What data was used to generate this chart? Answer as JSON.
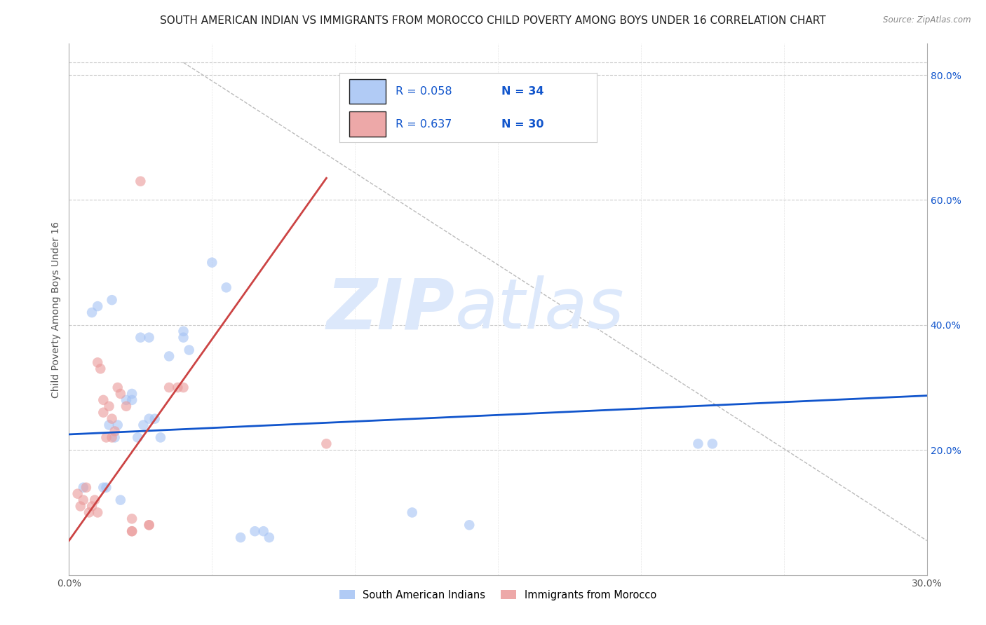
{
  "title": "SOUTH AMERICAN INDIAN VS IMMIGRANTS FROM MOROCCO CHILD POVERTY AMONG BOYS UNDER 16 CORRELATION CHART",
  "source": "Source: ZipAtlas.com",
  "ylabel": "Child Poverty Among Boys Under 16",
  "right_yticks": [
    "80.0%",
    "60.0%",
    "40.0%",
    "20.0%"
  ],
  "right_ytick_vals": [
    0.8,
    0.6,
    0.4,
    0.2
  ],
  "xlim": [
    0.0,
    0.3
  ],
  "ylim": [
    0.0,
    0.85
  ],
  "legend_blue_R": "0.058",
  "legend_blue_N": "34",
  "legend_pink_R": "0.637",
  "legend_pink_N": "30",
  "legend_label_blue": "South American Indians",
  "legend_label_pink": "Immigrants from Morocco",
  "blue_scatter_x": [
    0.005,
    0.008,
    0.01,
    0.012,
    0.013,
    0.014,
    0.015,
    0.016,
    0.017,
    0.018,
    0.02,
    0.022,
    0.022,
    0.024,
    0.025,
    0.026,
    0.028,
    0.028,
    0.03,
    0.032,
    0.035,
    0.04,
    0.04,
    0.042,
    0.05,
    0.055,
    0.06,
    0.065,
    0.068,
    0.07,
    0.12,
    0.14,
    0.22,
    0.225
  ],
  "blue_scatter_y": [
    0.14,
    0.42,
    0.43,
    0.14,
    0.14,
    0.24,
    0.44,
    0.22,
    0.24,
    0.12,
    0.28,
    0.28,
    0.29,
    0.22,
    0.38,
    0.24,
    0.25,
    0.38,
    0.25,
    0.22,
    0.35,
    0.39,
    0.38,
    0.36,
    0.5,
    0.46,
    0.06,
    0.07,
    0.07,
    0.06,
    0.1,
    0.08,
    0.21,
    0.21
  ],
  "pink_scatter_x": [
    0.003,
    0.004,
    0.005,
    0.006,
    0.007,
    0.008,
    0.009,
    0.01,
    0.01,
    0.011,
    0.012,
    0.012,
    0.013,
    0.014,
    0.015,
    0.015,
    0.016,
    0.017,
    0.018,
    0.02,
    0.022,
    0.022,
    0.022,
    0.025,
    0.028,
    0.028,
    0.035,
    0.038,
    0.04,
    0.09
  ],
  "pink_scatter_y": [
    0.13,
    0.11,
    0.12,
    0.14,
    0.1,
    0.11,
    0.12,
    0.34,
    0.1,
    0.33,
    0.26,
    0.28,
    0.22,
    0.27,
    0.25,
    0.22,
    0.23,
    0.3,
    0.29,
    0.27,
    0.07,
    0.07,
    0.09,
    0.63,
    0.08,
    0.08,
    0.3,
    0.3,
    0.3,
    0.21
  ],
  "blue_line_x": [
    0.0,
    0.3
  ],
  "blue_line_y": [
    0.225,
    0.287
  ],
  "pink_line_x": [
    0.0,
    0.09
  ],
  "pink_line_y": [
    0.055,
    0.635
  ],
  "diag_line_x": [
    0.04,
    0.3
  ],
  "diag_line_y": [
    0.82,
    0.055
  ],
  "blue_color": "#a4c2f4",
  "pink_color": "#ea9999",
  "blue_line_color": "#1155cc",
  "pink_line_color": "#cc4444",
  "legend_text_color": "#1155cc",
  "watermark_zip_color": "#c9daf8",
  "watermark_atlas_color": "#c9daf8",
  "background_color": "#ffffff",
  "grid_color": "#cccccc",
  "title_fontsize": 11,
  "label_fontsize": 10,
  "tick_fontsize": 10,
  "marker_size": 110,
  "marker_alpha": 0.6
}
